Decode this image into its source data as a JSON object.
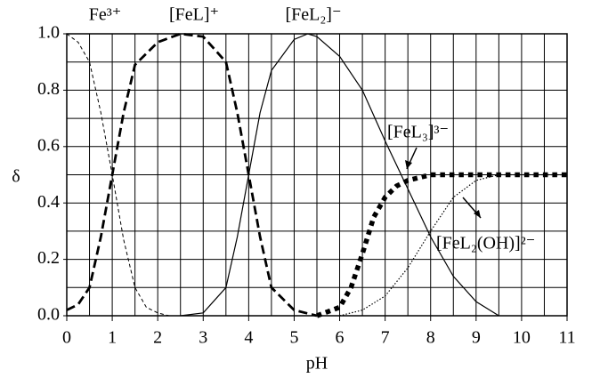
{
  "chart_data": {
    "type": "line",
    "xlabel": "pH",
    "ylabel": "δ",
    "xlim": [
      0,
      11
    ],
    "ylim": [
      0,
      1
    ],
    "xticks": [
      0,
      1,
      2,
      3,
      4,
      5,
      6,
      7,
      8,
      9,
      10,
      11
    ],
    "yticks": [
      {
        "value": 0,
        "label": "0.0"
      },
      {
        "value": 0.2,
        "label": "0.2"
      },
      {
        "value": 0.4,
        "label": "0.4"
      },
      {
        "value": 0.6,
        "label": "0.6"
      },
      {
        "value": 0.8,
        "label": "0.8"
      },
      {
        "value": 1,
        "label": "1.0"
      }
    ],
    "grid": true,
    "series": [
      {
        "name": "Fe³⁺",
        "color": "#000000",
        "style": "dashed",
        "x": [
          0,
          0.25,
          0.5,
          0.75,
          1,
          1.25,
          1.5,
          1.75,
          2,
          2.25
        ],
        "values": [
          1.0,
          0.97,
          0.9,
          0.72,
          0.5,
          0.27,
          0.1,
          0.03,
          0.01,
          0
        ]
      },
      {
        "name": "[FeL]⁺",
        "color": "#000000",
        "style": "bold-dashed",
        "x": [
          0,
          0.25,
          0.5,
          0.75,
          1,
          1.25,
          1.5,
          2,
          2.5,
          3,
          3.5,
          3.75,
          4,
          4.25,
          4.5,
          5,
          5.5
        ],
        "values": [
          0.02,
          0.04,
          0.1,
          0.28,
          0.5,
          0.72,
          0.89,
          0.97,
          1.0,
          0.99,
          0.9,
          0.72,
          0.5,
          0.28,
          0.1,
          0.02,
          0
        ]
      },
      {
        "name": "[FeL₂]⁻",
        "color": "#000000",
        "style": "solid",
        "x": [
          2.5,
          3,
          3.5,
          3.75,
          4,
          4.25,
          4.5,
          5,
          5.3,
          5.5,
          6,
          6.5,
          7,
          7.5,
          8,
          8.5,
          9,
          9.5
        ],
        "values": [
          0,
          0.01,
          0.1,
          0.28,
          0.5,
          0.72,
          0.87,
          0.98,
          1.0,
          0.99,
          0.92,
          0.8,
          0.62,
          0.45,
          0.28,
          0.14,
          0.05,
          0
        ]
      },
      {
        "name": "[FeL₃]³⁻",
        "color": "#000000",
        "style": "bold-dotted",
        "x": [
          5.5,
          6,
          6.25,
          6.5,
          6.75,
          7,
          7.25,
          7.5,
          8,
          9,
          10,
          11
        ],
        "values": [
          0,
          0.03,
          0.1,
          0.22,
          0.35,
          0.42,
          0.46,
          0.48,
          0.5,
          0.5,
          0.5,
          0.5
        ]
      },
      {
        "name": "[FeL₂(OH)]²⁻",
        "color": "#000000",
        "style": "dotted",
        "x": [
          6,
          6.5,
          7,
          7.5,
          8,
          8.5,
          9,
          9.5,
          10,
          11
        ],
        "values": [
          0,
          0.02,
          0.07,
          0.17,
          0.3,
          0.42,
          0.48,
          0.5,
          0.5,
          0.5
        ]
      }
    ]
  }
}
